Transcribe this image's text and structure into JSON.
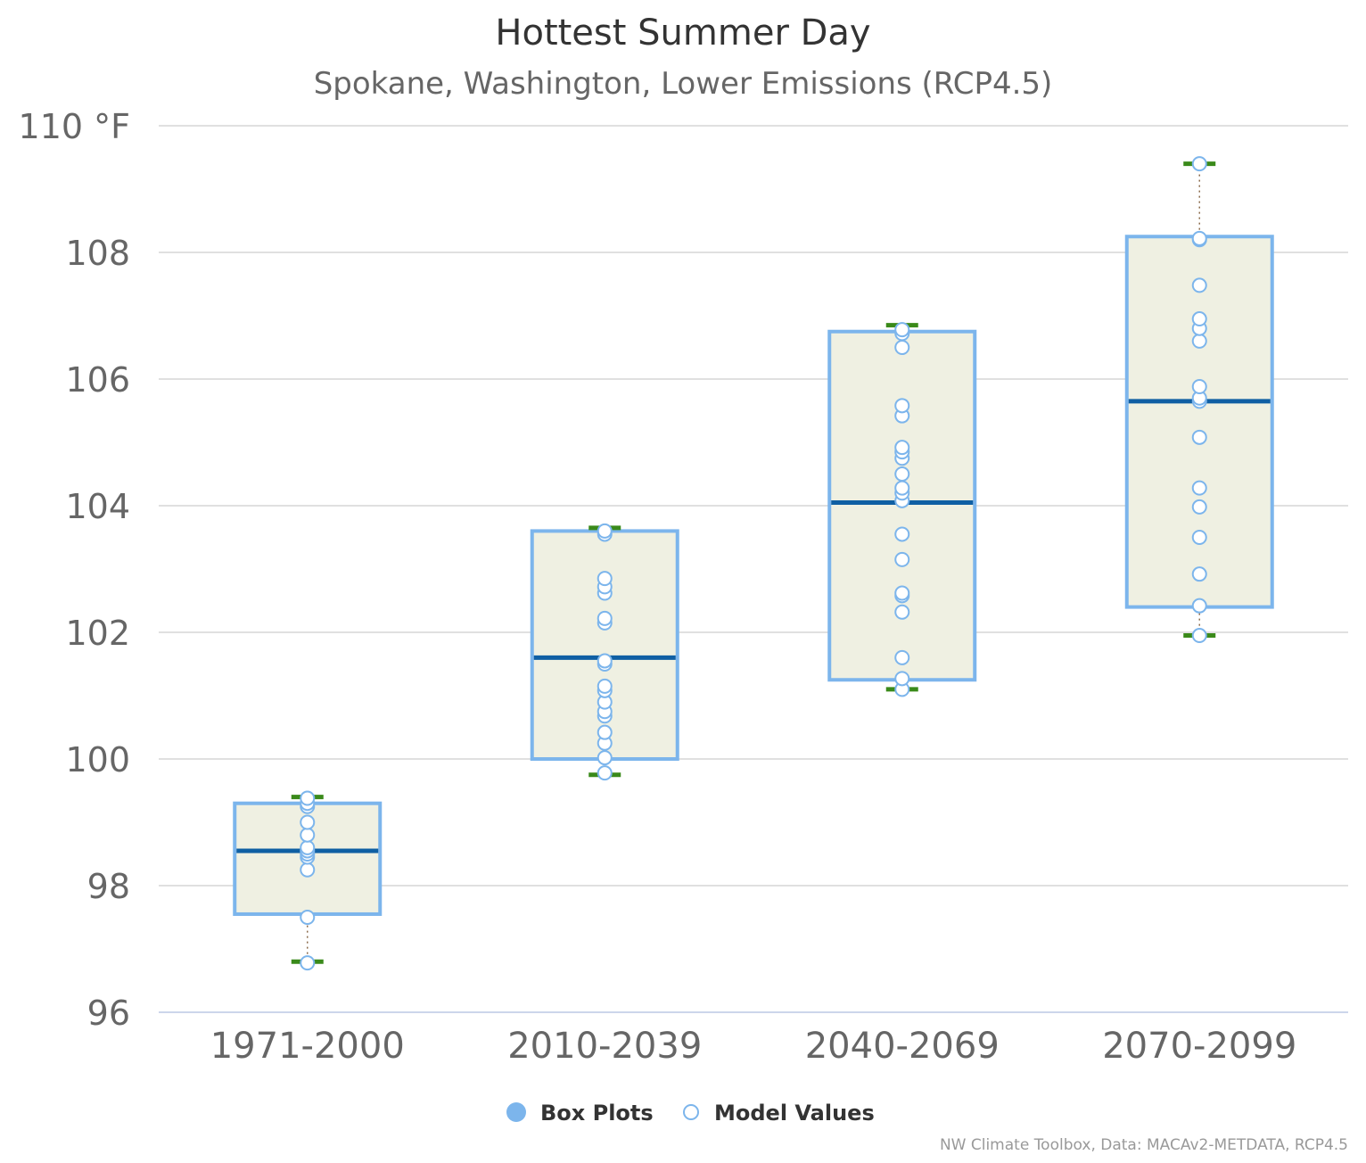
{
  "chart_data": {
    "type": "boxplot",
    "title": "Hottest Summer Day",
    "subtitle": "Spokane, Washington, Lower Emissions (RCP4.5)",
    "credit": "NW Climate Toolbox, Data: MACAv2-METDATA, RCP4.5",
    "y_unit": "°F",
    "ylim": [
      96,
      110
    ],
    "yticks": [
      96,
      98,
      100,
      102,
      104,
      106,
      108,
      110
    ],
    "ytick_labels": [
      "96",
      "98",
      "100",
      "102",
      "104",
      "106",
      "108",
      "110 °F"
    ],
    "categories": [
      "1971-2000",
      "2010-2039",
      "2040-2069",
      "2070-2099"
    ],
    "grid": true,
    "legend": {
      "placement": "bottom-center",
      "items": [
        {
          "label": "Box Plots",
          "marker": "filled-circle"
        },
        {
          "label": "Model Values",
          "marker": "open-circle"
        }
      ]
    },
    "colors": {
      "box_fill": "#eff0e2",
      "box_border": "#7cb5ec",
      "median": "#0f5fa3",
      "whisker_cap": "#3a8a1a",
      "stem": "#8a6a4a",
      "point_stroke": "#7cb5ec",
      "legend_box": "#7cb5ec",
      "grid": "#e0e0e0",
      "axis_text": "#666666",
      "title_text": "#333333"
    },
    "boxes": [
      {
        "category": "1971-2000",
        "low": 96.8,
        "q1": 97.55,
        "median": 98.55,
        "q3": 99.3,
        "high": 99.4
      },
      {
        "category": "2010-2039",
        "low": 99.75,
        "q1": 100.0,
        "median": 101.6,
        "q3": 103.6,
        "high": 103.65
      },
      {
        "category": "2040-2069",
        "low": 101.1,
        "q1": 101.25,
        "median": 104.05,
        "q3": 106.75,
        "high": 106.85
      },
      {
        "category": "2070-2099",
        "low": 101.95,
        "q1": 102.4,
        "median": 105.65,
        "q3": 108.25,
        "high": 109.4
      }
    ],
    "model_values": [
      {
        "category": "1971-2000",
        "values": [
          96.78,
          97.5,
          98.25,
          98.45,
          98.5,
          98.55,
          98.6,
          98.8,
          99.0,
          99.25,
          99.3,
          99.38
        ]
      },
      {
        "category": "2010-2039",
        "values": [
          99.78,
          100.02,
          100.25,
          100.42,
          100.68,
          100.75,
          100.9,
          101.08,
          101.15,
          101.5,
          101.55,
          102.15,
          102.22,
          102.62,
          102.72,
          102.85,
          103.55,
          103.6
        ]
      },
      {
        "category": "2040-2069",
        "values": [
          101.1,
          101.27,
          101.6,
          102.32,
          102.58,
          102.62,
          103.15,
          103.55,
          104.08,
          104.2,
          104.28,
          104.5,
          104.75,
          104.85,
          104.92,
          105.42,
          105.58,
          106.5,
          106.72,
          106.78
        ]
      },
      {
        "category": "2070-2099",
        "values": [
          101.95,
          102.42,
          102.92,
          103.5,
          103.98,
          104.28,
          105.08,
          105.65,
          105.7,
          105.88,
          106.6,
          106.8,
          106.95,
          107.48,
          108.2,
          108.22,
          109.4
        ]
      }
    ]
  }
}
